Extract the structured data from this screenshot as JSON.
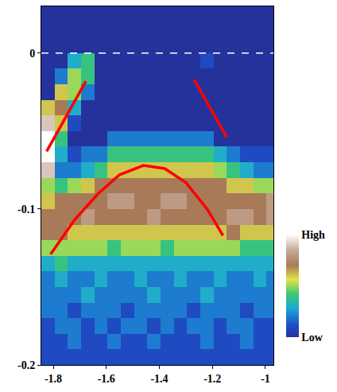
{
  "chart_data": {
    "type": "heatmap",
    "x": [
      -1.82,
      -1.77,
      -1.72,
      -1.67,
      -1.62,
      -1.57,
      -1.52,
      -1.47,
      -1.42,
      -1.37,
      -1.32,
      -1.27,
      -1.22,
      -1.17,
      -1.12,
      -1.07,
      -1.02,
      -0.97
    ],
    "y": [
      0.025,
      0.015,
      0.005,
      -0.005,
      -0.015,
      -0.025,
      -0.035,
      -0.045,
      -0.055,
      -0.065,
      -0.075,
      -0.085,
      -0.095,
      -0.105,
      -0.115,
      -0.125,
      -0.135,
      -0.145,
      -0.155,
      -0.165,
      -0.175,
      -0.185,
      -0.195
    ],
    "cells": [
      [
        0,
        0,
        0,
        0,
        0,
        0,
        0,
        0,
        0,
        0,
        0,
        0,
        0,
        0,
        0,
        0,
        0,
        0
      ],
      [
        0,
        0,
        0,
        0,
        0,
        0,
        0,
        0,
        0,
        0,
        0,
        0,
        0,
        0,
        0,
        0,
        0,
        0
      ],
      [
        0,
        0,
        0,
        0,
        0,
        0,
        0,
        0,
        0,
        0,
        0,
        0,
        0,
        0,
        0,
        0,
        0,
        0
      ],
      [
        0,
        0,
        3,
        4,
        0,
        0,
        0,
        0,
        0,
        0,
        0,
        0,
        1,
        0,
        0,
        0,
        0,
        0
      ],
      [
        0,
        2,
        5,
        4,
        0,
        0,
        0,
        0,
        0,
        0,
        0,
        0,
        0,
        0,
        0,
        0,
        0,
        0
      ],
      [
        0,
        6,
        5,
        2,
        0,
        0,
        0,
        0,
        0,
        0,
        0,
        0,
        0,
        0,
        0,
        0,
        0,
        0
      ],
      [
        6,
        7,
        3,
        0,
        0,
        0,
        0,
        0,
        0,
        0,
        0,
        0,
        0,
        0,
        0,
        0,
        0,
        0
      ],
      [
        9,
        6,
        1,
        0,
        0,
        0,
        0,
        0,
        0,
        0,
        0,
        0,
        0,
        0,
        0,
        0,
        0,
        0
      ],
      [
        10,
        4,
        0,
        0,
        0,
        2,
        2,
        2,
        2,
        2,
        2,
        2,
        2,
        0,
        0,
        0,
        0,
        0
      ],
      [
        10,
        3,
        1,
        2,
        2,
        4,
        4,
        4,
        4,
        4,
        4,
        4,
        4,
        3,
        2,
        1,
        1,
        1
      ],
      [
        9,
        2,
        2,
        3,
        4,
        6,
        6,
        6,
        6,
        6,
        6,
        6,
        6,
        5,
        4,
        3,
        2,
        2
      ],
      [
        5,
        4,
        5,
        6,
        7,
        7,
        7,
        7,
        7,
        7,
        7,
        7,
        7,
        7,
        6,
        6,
        5,
        5
      ],
      [
        6,
        7,
        7,
        7,
        7,
        8,
        8,
        7,
        7,
        8,
        8,
        7,
        7,
        7,
        7,
        7,
        7,
        8
      ],
      [
        7,
        7,
        7,
        8,
        7,
        7,
        7,
        7,
        8,
        7,
        7,
        7,
        7,
        7,
        8,
        8,
        7,
        8
      ],
      [
        7,
        7,
        6,
        6,
        6,
        6,
        6,
        6,
        6,
        6,
        6,
        6,
        6,
        6,
        7,
        6,
        6,
        6
      ],
      [
        5,
        5,
        5,
        5,
        5,
        4,
        5,
        5,
        5,
        4,
        5,
        5,
        5,
        5,
        5,
        4,
        4,
        4
      ],
      [
        3,
        4,
        3,
        3,
        3,
        3,
        3,
        3,
        3,
        3,
        3,
        3,
        3,
        3,
        3,
        3,
        3,
        3
      ],
      [
        2,
        3,
        2,
        2,
        3,
        2,
        2,
        3,
        2,
        2,
        3,
        2,
        2,
        3,
        2,
        2,
        3,
        2
      ],
      [
        2,
        2,
        2,
        3,
        2,
        2,
        2,
        2,
        3,
        2,
        2,
        2,
        3,
        2,
        2,
        2,
        2,
        2
      ],
      [
        2,
        2,
        1,
        2,
        2,
        2,
        1,
        2,
        2,
        2,
        2,
        1,
        2,
        2,
        2,
        1,
        2,
        2
      ],
      [
        1,
        2,
        2,
        1,
        2,
        1,
        2,
        2,
        1,
        2,
        1,
        2,
        2,
        1,
        2,
        2,
        1,
        1
      ],
      [
        1,
        1,
        2,
        1,
        1,
        2,
        1,
        1,
        2,
        1,
        1,
        1,
        2,
        1,
        1,
        2,
        1,
        1
      ],
      [
        1,
        1,
        1,
        1,
        1,
        1,
        1,
        1,
        1,
        1,
        1,
        1,
        1,
        1,
        1,
        1,
        1,
        1
      ]
    ],
    "zlim": [
      0,
      10
    ],
    "zticks": [
      {
        "value": 0,
        "label": "Low"
      },
      {
        "value": 10,
        "label": "High"
      }
    ],
    "xlim": [
      -1.845,
      -0.97
    ],
    "xticks": [
      -1.8,
      -1.6,
      -1.4,
      -1.2,
      -1
    ],
    "ylim": [
      -0.2,
      0.03
    ],
    "yticks": [
      0,
      -0.1,
      -0.2
    ],
    "series": [
      {
        "type": "line",
        "color": "#ffffff",
        "line_style": "dashed",
        "x": [
          -1.845,
          -0.97
        ],
        "y": [
          0,
          0
        ]
      },
      {
        "type": "line",
        "color": "#ff0000",
        "line_style": "solid",
        "x": [
          -1.825,
          -1.677
        ],
        "y": [
          -0.063,
          -0.018
        ]
      },
      {
        "type": "line",
        "color": "#ff0000",
        "line_style": "solid",
        "x": [
          -1.269,
          -1.146
        ],
        "y": [
          -0.017,
          -0.054
        ]
      },
      {
        "type": "line",
        "color": "#ff0000",
        "line_style": "solid",
        "x": [
          -1.81,
          -1.72,
          -1.63,
          -1.55,
          -1.46,
          -1.38,
          -1.3,
          -1.22,
          -1.16
        ],
        "y": [
          -0.129,
          -0.107,
          -0.09,
          -0.078,
          -0.072,
          -0.074,
          -0.083,
          -0.1,
          -0.117
        ]
      }
    ]
  }
}
